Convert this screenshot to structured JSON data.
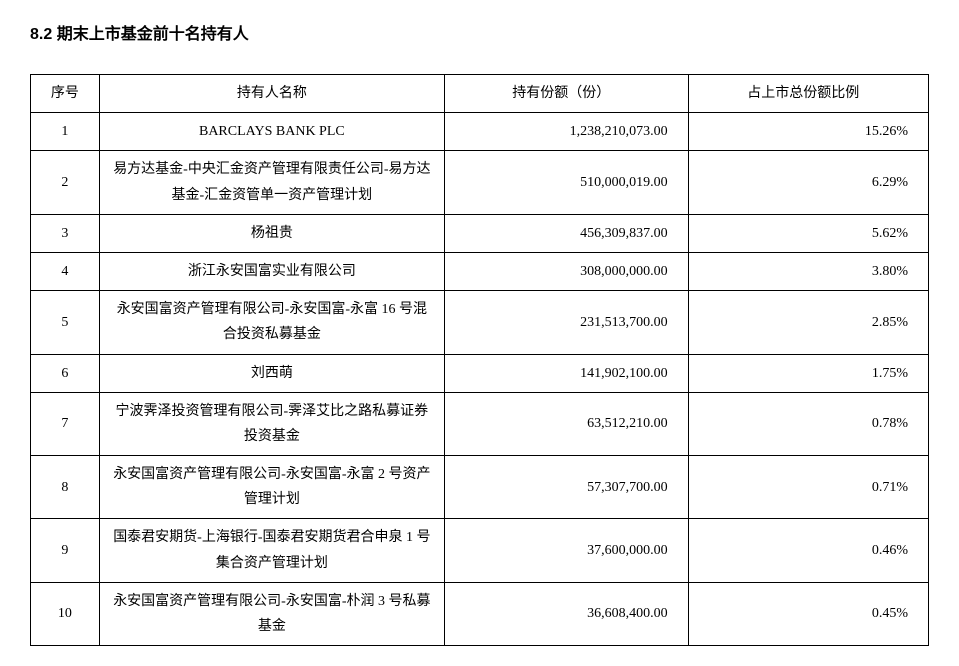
{
  "heading": "8.2 期末上市基金前十名持有人",
  "table": {
    "columns": [
      "序号",
      "持有人名称",
      "持有份额（份）",
      "占上市总份额比例"
    ],
    "rows": [
      {
        "seq": "1",
        "name": "BARCLAYS BANK PLC",
        "shares": "1,238,210,073.00",
        "pct": "15.26%"
      },
      {
        "seq": "2",
        "name": "易方达基金-中央汇金资产管理有限责任公司-易方达基金-汇金资管单一资产管理计划",
        "shares": "510,000,019.00",
        "pct": "6.29%"
      },
      {
        "seq": "3",
        "name": "杨祖贵",
        "shares": "456,309,837.00",
        "pct": "5.62%"
      },
      {
        "seq": "4",
        "name": "浙江永安国富实业有限公司",
        "shares": "308,000,000.00",
        "pct": "3.80%"
      },
      {
        "seq": "5",
        "name": "永安国富资产管理有限公司-永安国富-永富 16 号混合投资私募基金",
        "shares": "231,513,700.00",
        "pct": "2.85%"
      },
      {
        "seq": "6",
        "name": "刘西萌",
        "shares": "141,902,100.00",
        "pct": "1.75%"
      },
      {
        "seq": "7",
        "name": "宁波霁泽投资管理有限公司-霁泽艾比之路私募证券投资基金",
        "shares": "63,512,210.00",
        "pct": "0.78%"
      },
      {
        "seq": "8",
        "name": "永安国富资产管理有限公司-永安国富-永富 2 号资产管理计划",
        "shares": "57,307,700.00",
        "pct": "0.71%"
      },
      {
        "seq": "9",
        "name": "国泰君安期货-上海银行-国泰君安期货君合申泉 1 号集合资产管理计划",
        "shares": "37,600,000.00",
        "pct": "0.46%"
      },
      {
        "seq": "10",
        "name": "永安国富资产管理有限公司-永安国富-朴润 3 号私募基金",
        "shares": "36,608,400.00",
        "pct": "0.45%"
      }
    ]
  }
}
